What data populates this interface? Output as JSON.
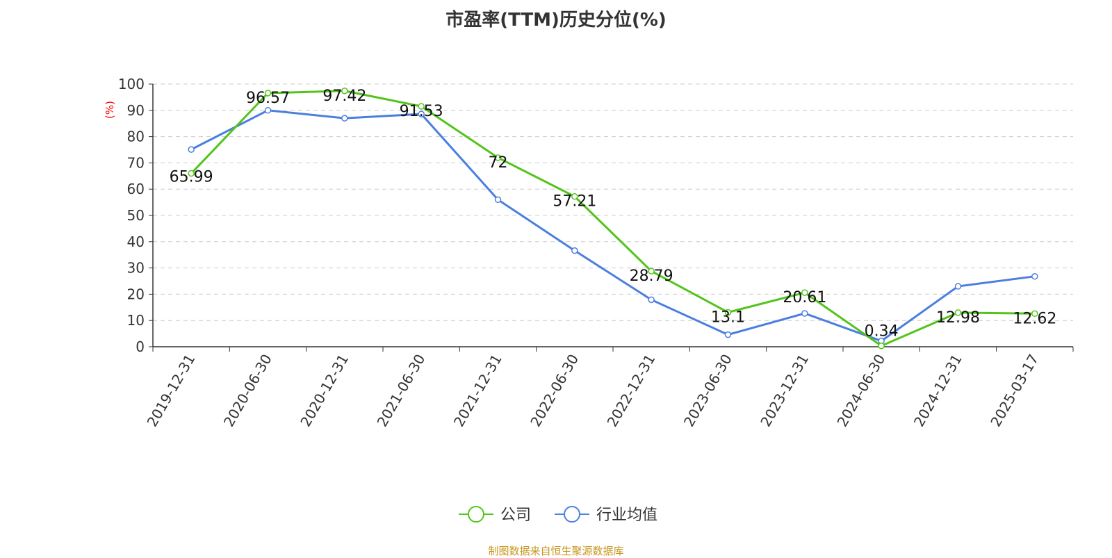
{
  "chart_data": {
    "type": "line",
    "title": "市盈率(TTM)历史分位(%)",
    "ylabel": "(%)",
    "ylim": [
      0,
      100
    ],
    "yticks": [
      0,
      10,
      20,
      30,
      40,
      50,
      60,
      70,
      80,
      90,
      100
    ],
    "grid": true,
    "legend_position": "bottom",
    "categories": [
      "2019-12-31",
      "2020-06-30",
      "2020-12-31",
      "2021-06-30",
      "2021-12-31",
      "2022-06-30",
      "2022-12-31",
      "2023-06-30",
      "2023-12-31",
      "2024-06-30",
      "2024-12-31",
      "2025-03-17"
    ],
    "series": [
      {
        "name": "公司",
        "color": "#52c41a",
        "values": [
          65.99,
          96.57,
          97.42,
          91.53,
          72,
          57.21,
          28.79,
          13.1,
          20.61,
          0.34,
          12.98,
          12.62
        ],
        "labels": true
      },
      {
        "name": "行业均值",
        "color": "#4a7fe0",
        "values": [
          75.1,
          90,
          87,
          88.6,
          56,
          36.6,
          17.9,
          4.6,
          12.7,
          2.2,
          23,
          26.8
        ],
        "labels": false
      }
    ]
  },
  "source": "制图数据来自恒生聚源数据库"
}
